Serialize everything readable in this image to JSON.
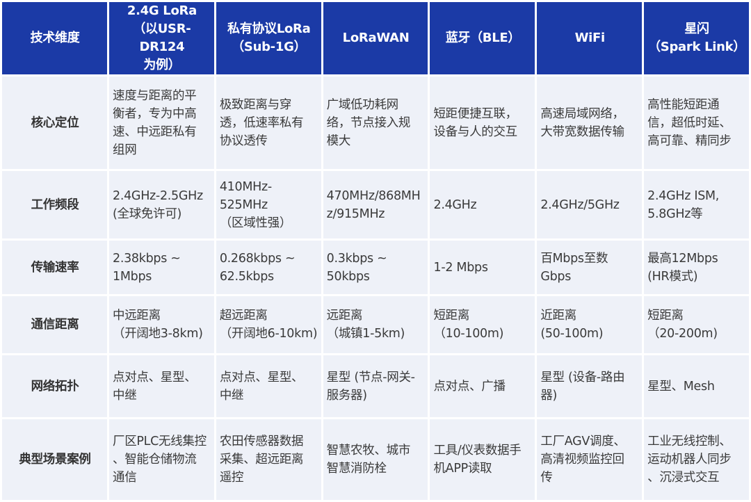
{
  "headers": [
    "技术维度",
    "2.4G LoRa\n（以USR-DR124\n为例）",
    "私有协议LoRa\n（Sub-1G）",
    "LoRaWAN",
    "蓝牙（BLE）",
    "WiFi",
    "星闪\n（Spark Link）"
  ],
  "rows": [
    {
      "dim": "核心定位",
      "cells": [
        "速度与距离的平\n衡者，专为中高\n速、中远距私有\n组网",
        "极致距离与穿\n透，低速率私有\n协议透传",
        "广域低功耗网\n络，节点接入规\n模大",
        "短距便捷互联，\n设备与人的交互",
        "高速局域网络，\n大带宽数据传输",
        "高性能短距通\n信，超低时延、\n高可靠、精同步"
      ]
    },
    {
      "dim": "工作频段",
      "cells": [
        "2.4GHz-2.5GHz\n(全球免许可)",
        "410MHz-\n525MHz\n（区域性强）",
        "470MHz/868MH\nz/915MHz",
        "2.4GHz",
        "2.4GHz/5GHz",
        "2.4GHz ISM,\n5.8GHz等"
      ]
    },
    {
      "dim": "传输速率",
      "cells": [
        "2.38kbps ~\n1Mbps",
        "0.268kbps ~\n62.5kbps",
        "0.3kbps ~\n50kbps",
        "1-2 Mbps",
        "百Mbps至数\nGbps",
        "最高12Mbps\n(HR模式)"
      ]
    },
    {
      "dim": "通信距离",
      "cells": [
        "中远距离\n（开阔地3-8km)",
        "超远距离\n（开阔地6-10km)",
        "远距离\n（城镇1-5km)",
        "短距离\n（10-100m)",
        "近距离\n(50-100m)",
        "短距离\n（20-200m)"
      ]
    },
    {
      "dim": "网络拓扑",
      "cells": [
        "点对点、星型、\n中继",
        "点对点、星型、\n中继",
        "星型 (节点-网关-\n服务器)",
        "点对点、广播",
        "星型 (设备-路由\n器)",
        "星型、Mesh"
      ]
    },
    {
      "dim": "典型场景案例",
      "cells": [
        "厂区PLC无线集控\n、智能仓储物流\n通信",
        "农田传感器数据\n采集、超远距离\n遥控",
        "智慧农牧、城市\n智慧消防栓",
        "工具/仪表数据手\n机APP读取",
        "工厂AGV调度、\n高清视频监控回\n传",
        "工业无线控制、\n运动机器人同步\n、沉浸式交互"
      ]
    }
  ],
  "colors": {
    "header_bg": "#1b3aa6",
    "cell_bg": "#eef1f8"
  }
}
